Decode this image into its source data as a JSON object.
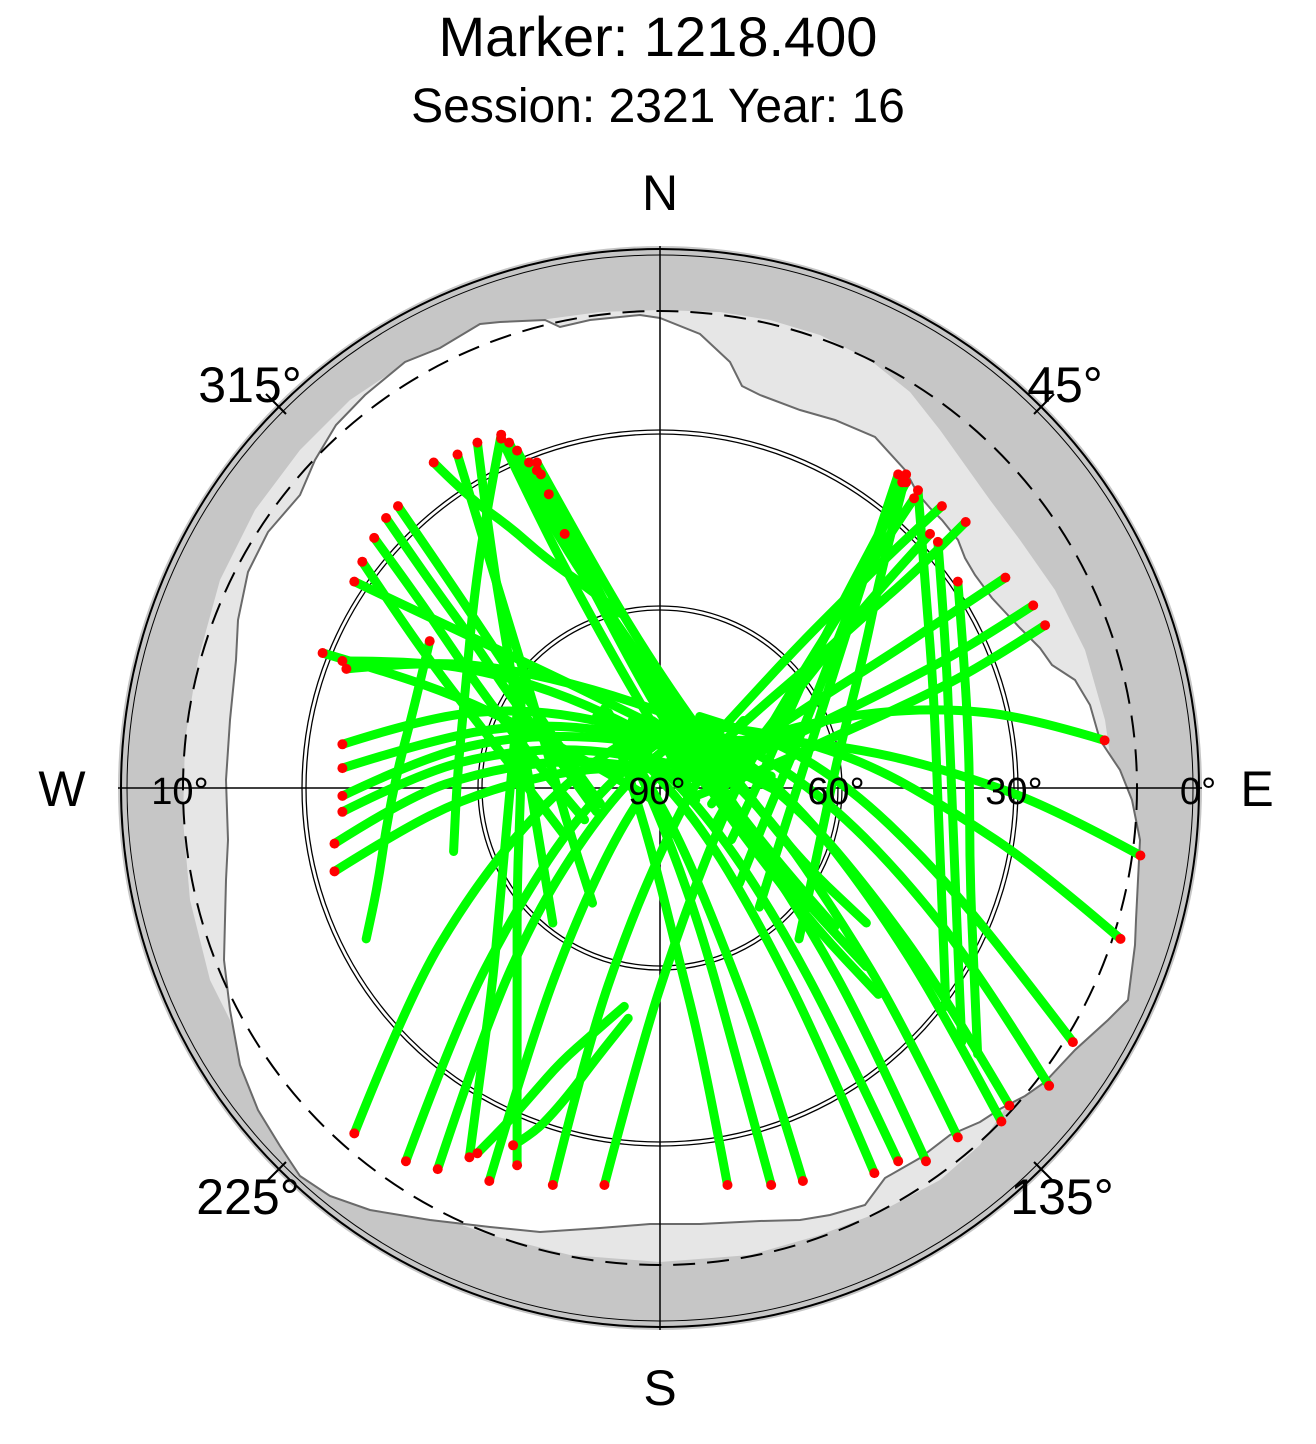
{
  "chart_data": {
    "type": "scatter",
    "projection": "polar-skyplot",
    "title": "Marker: 1218.400",
    "subtitle": "Session: 2321 Year: 16",
    "directions": {
      "north": "N",
      "east": "E",
      "south": "S",
      "west": "W"
    },
    "azimuth_labels": [
      "45°",
      "135°",
      "225°",
      "315°"
    ],
    "elevation_labels": [
      "90°",
      "60°",
      "30°",
      "0°",
      "10°"
    ],
    "elevation_rings": [
      30,
      60
    ],
    "cutoff_elevation_deg": 10,
    "colors": {
      "tracks": "#00ff00",
      "track_ends": "#ff0000",
      "horizon_mask": "#c6c6c6",
      "obstruction": "#e6e6e6",
      "axes": "#000000"
    },
    "tracks": [
      {
        "x": [
          -0.58,
          -0.62,
          -0.66,
          -0.69,
          -0.71,
          -0.74
        ],
        "y": [
          0.37,
          0.2,
          0.05,
          -0.1,
          -0.24,
          -0.38
        ]
      },
      {
        "x": [
          -0.48,
          -0.45,
          -0.42,
          -0.4,
          -0.38,
          -0.36
        ],
        "y": [
          -0.93,
          -0.7,
          -0.48,
          -0.25,
          -0.03,
          0.19
        ]
      },
      {
        "x": [
          -0.4,
          -0.44,
          -0.47,
          -0.49,
          -0.51,
          -0.52
        ],
        "y": [
          0.89,
          0.68,
          0.47,
          0.25,
          0.04,
          -0.16
        ]
      },
      {
        "x": [
          -0.36,
          -0.36,
          -0.36,
          -0.36,
          -0.35,
          -0.35
        ],
        "y": [
          -0.95,
          -0.71,
          -0.47,
          -0.23,
          0.0,
          0.23
        ]
      },
      {
        "x": [
          -0.37,
          -0.32,
          -0.27,
          -0.22,
          -0.16,
          -0.08
        ],
        "y": [
          -0.9,
          -0.87,
          -0.82,
          -0.76,
          -0.68,
          -0.58
        ]
      },
      {
        "x": [
          -0.46,
          -0.39,
          -0.32,
          -0.25,
          -0.17,
          -0.09
        ],
        "y": [
          -0.92,
          -0.85,
          -0.77,
          -0.69,
          -0.62,
          -0.55
        ]
      },
      {
        "x": [
          -0.57,
          -0.48,
          -0.38,
          -0.29,
          -0.19,
          -0.1
        ],
        "y": [
          0.82,
          0.73,
          0.66,
          0.58,
          0.51,
          0.44
        ]
      },
      {
        "x": [
          -0.38,
          -0.3,
          -0.21,
          -0.12,
          -0.03,
          0.06
        ],
        "y": [
          0.87,
          0.71,
          0.56,
          0.43,
          0.3,
          0.18
        ]
      },
      {
        "x": [
          -0.4,
          -0.3,
          -0.2,
          -0.1,
          0.0,
          0.09
        ],
        "y": [
          0.88,
          0.67,
          0.48,
          0.3,
          0.13,
          -0.03
        ]
      },
      {
        "x": [
          -0.36,
          -0.24,
          -0.11,
          0.01,
          0.13,
          0.24
        ],
        "y": [
          0.85,
          0.62,
          0.41,
          0.21,
          0.04,
          -0.12
        ]
      },
      {
        "x": [
          -0.33,
          -0.21,
          -0.08,
          0.05,
          0.17,
          0.28
        ],
        "y": [
          0.82,
          0.57,
          0.34,
          0.14,
          -0.05,
          -0.21
        ]
      },
      {
        "x": [
          -0.31,
          -0.17,
          -0.04,
          0.1,
          0.24,
          0.36
        ],
        "y": [
          0.8,
          0.51,
          0.26,
          0.05,
          -0.15,
          -0.32
        ]
      },
      {
        "x": [
          -0.31,
          -0.14,
          0.03,
          0.2,
          0.36,
          0.52
        ],
        "y": [
          0.82,
          0.51,
          0.24,
          0.01,
          -0.19,
          -0.34
        ]
      },
      {
        "x": [
          -0.3,
          -0.15,
          0.0,
          0.15,
          0.3,
          0.44
        ],
        "y": [
          0.79,
          0.48,
          0.22,
          0.0,
          -0.19,
          -0.35
        ]
      },
      {
        "x": [
          -0.28,
          -0.12,
          0.05,
          0.21,
          0.37,
          0.52
        ],
        "y": [
          0.74,
          0.4,
          0.13,
          -0.1,
          -0.29,
          -0.45
        ]
      },
      {
        "x": [
          -0.24,
          -0.08,
          0.08,
          0.24,
          0.39,
          0.55
        ],
        "y": [
          0.64,
          0.32,
          0.06,
          -0.16,
          -0.35,
          -0.52
        ]
      },
      {
        "x": [
          -0.77,
          -0.58,
          -0.39,
          -0.2,
          -0.02,
          0.15
        ],
        "y": [
          0.52,
          0.43,
          0.34,
          0.25,
          0.16,
          0.08
        ]
      },
      {
        "x": [
          -0.79,
          -0.58,
          -0.38,
          -0.17,
          0.04,
          0.24
        ],
        "y": [
          0.3,
          0.32,
          0.3,
          0.25,
          0.18,
          0.09
        ]
      },
      {
        "x": [
          -0.8,
          -0.61,
          -0.42,
          -0.23,
          -0.04,
          0.15
        ],
        "y": [
          0.32,
          0.32,
          0.29,
          0.23,
          0.14,
          0.03
        ]
      },
      {
        "x": [
          -0.8,
          -0.58,
          -0.36,
          -0.14,
          0.08,
          0.3
        ],
        "y": [
          0.11,
          0.18,
          0.2,
          0.17,
          0.1,
          -0.01
        ]
      },
      {
        "x": [
          -0.8,
          -0.58,
          -0.36,
          -0.14,
          0.08,
          0.3
        ],
        "y": [
          0.05,
          0.12,
          0.16,
          0.15,
          0.1,
          0.01
        ]
      },
      {
        "x": [
          -0.8,
          -0.59,
          -0.37,
          -0.15,
          0.06,
          0.28
        ],
        "y": [
          -0.02,
          0.08,
          0.13,
          0.13,
          0.1,
          0.03
        ]
      },
      {
        "x": [
          -0.8,
          -0.6,
          -0.4,
          -0.2,
          0.0,
          0.2
        ],
        "y": [
          -0.06,
          0.04,
          0.09,
          0.1,
          0.07,
          0.01
        ]
      },
      {
        "x": [
          -0.82,
          -0.63,
          -0.45,
          -0.26,
          -0.08,
          0.11
        ],
        "y": [
          -0.14,
          -0.02,
          0.04,
          0.07,
          0.06,
          0.02
        ]
      },
      {
        "x": [
          -0.82,
          -0.66,
          -0.5,
          -0.34,
          -0.18,
          -0.02
        ],
        "y": [
          -0.21,
          -0.11,
          -0.03,
          0.02,
          0.05,
          0.05
        ]
      },
      {
        "x": [
          -0.77,
          -0.63,
          -0.48,
          -0.33,
          -0.18,
          -0.03
        ],
        "y": [
          -0.87,
          -0.52,
          -0.27,
          -0.08,
          0.06,
          0.15
        ]
      },
      {
        "x": [
          -0.64,
          -0.51,
          -0.37,
          -0.23,
          -0.08,
          0.06
        ],
        "y": [
          -0.94,
          -0.59,
          -0.32,
          -0.1,
          0.06,
          0.16
        ]
      },
      {
        "x": [
          -0.56,
          -0.44,
          -0.31,
          -0.17,
          -0.04,
          0.1
        ],
        "y": [
          -0.96,
          -0.6,
          -0.31,
          -0.09,
          0.06,
          0.16
        ]
      },
      {
        "x": [
          -0.43,
          -0.32,
          -0.21,
          -0.1,
          0.01,
          0.13
        ],
        "y": [
          -0.99,
          -0.62,
          -0.33,
          -0.1,
          0.06,
          0.16
        ]
      },
      {
        "x": [
          -0.27,
          -0.18,
          -0.08,
          0.02,
          0.11,
          0.21
        ],
        "y": [
          -1.0,
          -0.64,
          -0.35,
          -0.12,
          0.05,
          0.17
        ]
      },
      {
        "x": [
          -0.14,
          -0.05,
          0.04,
          0.13,
          0.21,
          0.3
        ],
        "y": [
          -1.0,
          -0.66,
          -0.38,
          -0.14,
          0.04,
          0.18
        ]
      },
      {
        "x": [
          0.17,
          0.11,
          0.04,
          -0.02,
          -0.08,
          -0.14
        ],
        "y": [
          -1.0,
          -0.68,
          -0.4,
          -0.16,
          0.04,
          0.2
        ]
      },
      {
        "x": [
          0.28,
          0.19,
          0.11,
          0.03,
          -0.05,
          -0.13
        ],
        "y": [
          -1.0,
          -0.67,
          -0.38,
          -0.15,
          0.04,
          0.19
        ]
      },
      {
        "x": [
          0.36,
          0.26,
          0.15,
          0.05,
          -0.05,
          -0.15
        ],
        "y": [
          -0.99,
          -0.66,
          -0.37,
          -0.13,
          0.05,
          0.19
        ]
      },
      {
        "x": [
          0.54,
          0.4,
          0.26,
          0.12,
          -0.02,
          -0.16
        ],
        "y": [
          -0.97,
          -0.64,
          -0.36,
          -0.12,
          0.05,
          0.18
        ]
      },
      {
        "x": [
          0.6,
          0.45,
          0.3,
          0.15,
          0.0,
          -0.15
        ],
        "y": [
          -0.94,
          -0.62,
          -0.34,
          -0.11,
          0.06,
          0.18
        ]
      },
      {
        "x": [
          0.67,
          0.52,
          0.37,
          0.22,
          0.07,
          -0.07
        ],
        "y": [
          -0.94,
          -0.61,
          -0.34,
          -0.11,
          0.06,
          0.17
        ]
      },
      {
        "x": [
          0.75,
          0.6,
          0.44,
          0.29,
          0.13,
          -0.02
        ],
        "y": [
          -0.88,
          -0.57,
          -0.31,
          -0.09,
          0.07,
          0.17
        ]
      },
      {
        "x": [
          0.86,
          0.7,
          0.54,
          0.38,
          0.22,
          0.06
        ],
        "y": [
          -0.84,
          -0.54,
          -0.29,
          -0.08,
          0.07,
          0.16
        ]
      },
      {
        "x": [
          0.88,
          0.71,
          0.53,
          0.36,
          0.18,
          0.01
        ],
        "y": [
          -0.8,
          -0.51,
          -0.26,
          -0.06,
          0.08,
          0.16
        ]
      },
      {
        "x": [
          0.98,
          0.8,
          0.61,
          0.42,
          0.23,
          0.04
        ],
        "y": [
          -0.75,
          -0.46,
          -0.22,
          -0.03,
          0.1,
          0.17
        ]
      },
      {
        "x": [
          1.04,
          0.85,
          0.67,
          0.48,
          0.29,
          0.1
        ],
        "y": [
          -0.64,
          -0.39,
          -0.18,
          0.0,
          0.12,
          0.18
        ]
      },
      {
        "x": [
          1.16,
          0.95,
          0.74,
          0.53,
          0.32,
          0.11
        ],
        "y": [
          -0.38,
          -0.2,
          -0.06,
          0.06,
          0.13,
          0.16
        ]
      },
      {
        "x": [
          1.21,
          0.99,
          0.77,
          0.55,
          0.33,
          0.11
        ],
        "y": [
          -0.17,
          -0.05,
          0.03,
          0.09,
          0.12,
          0.12
        ]
      },
      {
        "x": [
          1.12,
          0.92,
          0.72,
          0.52,
          0.32,
          0.12
        ],
        "y": [
          0.12,
          0.18,
          0.2,
          0.19,
          0.15,
          0.08
        ]
      },
      {
        "x": [
          0.97,
          0.8,
          0.62,
          0.44,
          0.27,
          0.09
        ],
        "y": [
          0.41,
          0.3,
          0.21,
          0.13,
          0.05,
          -0.02
        ]
      },
      {
        "x": [
          0.94,
          0.77,
          0.6,
          0.44,
          0.27,
          0.1
        ],
        "y": [
          0.46,
          0.35,
          0.26,
          0.18,
          0.1,
          0.02
        ]
      },
      {
        "x": [
          0.87,
          0.72,
          0.57,
          0.41,
          0.26,
          0.11
        ],
        "y": [
          0.53,
          0.43,
          0.33,
          0.23,
          0.13,
          0.03
        ]
      },
      {
        "x": [
          0.77,
          0.64,
          0.51,
          0.38,
          0.25,
          0.12
        ],
        "y": [
          0.67,
          0.54,
          0.43,
          0.31,
          0.2,
          0.08
        ]
      },
      {
        "x": [
          0.71,
          0.59,
          0.47,
          0.35,
          0.23,
          0.11
        ],
        "y": [
          0.71,
          0.6,
          0.48,
          0.36,
          0.23,
          0.1
        ]
      },
      {
        "x": [
          0.68,
          0.57,
          0.46,
          0.35,
          0.24,
          0.13
        ],
        "y": [
          0.64,
          0.52,
          0.39,
          0.25,
          0.11,
          -0.04
        ]
      },
      {
        "x": [
          0.64,
          0.54,
          0.44,
          0.34,
          0.24,
          0.14
        ],
        "y": [
          0.73,
          0.58,
          0.42,
          0.26,
          0.09,
          -0.09
        ]
      },
      {
        "x": [
          0.62,
          0.53,
          0.44,
          0.35,
          0.27,
          0.18
        ],
        "y": [
          0.77,
          0.6,
          0.43,
          0.25,
          0.06,
          -0.13
        ]
      },
      {
        "x": [
          0.61,
          0.53,
          0.45,
          0.37,
          0.28,
          0.2
        ],
        "y": [
          0.77,
          0.58,
          0.38,
          0.17,
          -0.04,
          -0.24
        ]
      },
      {
        "x": [
          0.6,
          0.53,
          0.46,
          0.39,
          0.32,
          0.25
        ],
        "y": [
          0.79,
          0.58,
          0.36,
          0.14,
          -0.08,
          -0.3
        ]
      },
      {
        "x": [
          0.62,
          0.56,
          0.51,
          0.45,
          0.4,
          0.35
        ],
        "y": [
          0.79,
          0.56,
          0.32,
          0.09,
          -0.15,
          -0.38
        ]
      },
      {
        "x": [
          0.65,
          0.67,
          0.69,
          0.7,
          0.71,
          0.72
        ],
        "y": [
          0.75,
          0.49,
          0.23,
          -0.03,
          -0.29,
          -0.55
        ]
      },
      {
        "x": [
          0.7,
          0.72,
          0.73,
          0.74,
          0.75,
          0.76
        ],
        "y": [
          0.62,
          0.36,
          0.11,
          -0.14,
          -0.4,
          -0.64
        ]
      },
      {
        "x": [
          0.75,
          0.77,
          0.78,
          0.78,
          0.79,
          0.8
        ],
        "y": [
          0.52,
          0.27,
          0.03,
          -0.2,
          -0.44,
          -0.67
        ]
      },
      {
        "x": [
          -0.69,
          -0.58,
          -0.47,
          -0.37,
          -0.26,
          -0.16
        ],
        "y": [
          0.68,
          0.52,
          0.37,
          0.22,
          0.08,
          -0.06
        ]
      },
      {
        "x": [
          -0.66,
          -0.55,
          -0.45,
          -0.35,
          -0.25,
          -0.15
        ],
        "y": [
          0.71,
          0.55,
          0.4,
          0.25,
          0.1,
          -0.04
        ]
      },
      {
        "x": [
          -0.51,
          -0.44,
          -0.37,
          -0.3,
          -0.24,
          -0.17
        ],
        "y": [
          0.84,
          0.61,
          0.38,
          0.15,
          -0.07,
          -0.29
        ]
      },
      {
        "x": [
          -0.46,
          -0.43,
          -0.39,
          -0.35,
          -0.31,
          -0.27
        ],
        "y": [
          0.87,
          0.63,
          0.38,
          0.14,
          -0.1,
          -0.34
        ]
      },
      {
        "x": [
          -0.75,
          -0.65,
          -0.55,
          -0.44,
          -0.34,
          -0.24
        ],
        "y": [
          0.57,
          0.42,
          0.28,
          0.14,
          0.01,
          -0.12
        ]
      },
      {
        "x": [
          -0.72,
          -0.61,
          -0.51,
          -0.41,
          -0.3,
          -0.19
        ],
        "y": [
          0.63,
          0.48,
          0.33,
          0.19,
          0.05,
          -0.08
        ]
      },
      {
        "x": [
          -0.85,
          -0.68,
          -0.51,
          -0.34,
          -0.17,
          0.0
        ],
        "y": [
          0.34,
          0.29,
          0.23,
          0.15,
          0.06,
          -0.04
        ]
      }
    ]
  }
}
